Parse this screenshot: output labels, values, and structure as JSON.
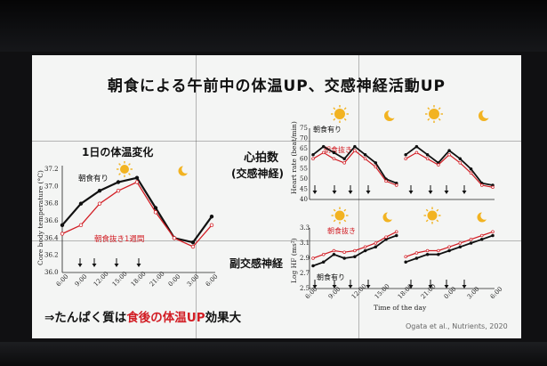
{
  "slide": {
    "title": "朝食による午前中の体温UP、交感神経活動UP",
    "left_panel": {
      "title": "1日の体温変化",
      "series_breakfast": "朝食有り",
      "series_skip": "朝食抜き1週間",
      "ylabel": "Core body temperature (°C)"
    },
    "right_top": {
      "label": "心拍数",
      "sublabel": "(交感神経)",
      "series_breakfast": "朝食有り",
      "series_skip": "朝食抜き",
      "ylabel": "Heart rate (beat/min)"
    },
    "right_bottom": {
      "label": "副交感神経",
      "series_breakfast": "朝食有り",
      "series_skip": "朝食抜き",
      "ylabel": "Log HF (ms²)",
      "xlabel": "Time of the day"
    },
    "conclusion_prefix": "⇒たんぱく質は",
    "conclusion_highlight": "食後の体温UP",
    "conclusion_suffix": "効果大",
    "citation": "Ogata et al., Nutrients, 2020",
    "colors": {
      "breakfast": "#111111",
      "skip": "#d21e25",
      "sun": "#f2b321",
      "moon": "#f2b321"
    },
    "icons": [
      "sun-icon",
      "moon-icon",
      "down-arrow-icon"
    ]
  },
  "chart_data": [
    {
      "type": "line",
      "ylabel": "Core body temperature (°C)",
      "x": [
        "6:00",
        "9:00",
        "12:00",
        "15:00",
        "18:00",
        "21:00",
        "0:00",
        "3:00",
        "6:00"
      ],
      "x_ticks": [
        "6:00",
        "9:00",
        "12:00",
        "15:00",
        "18:00",
        "21:00",
        "0:00",
        "3:00",
        "6:00"
      ],
      "y_ticks": [
        36.0,
        36.2,
        36.4,
        36.6,
        36.8,
        37.0,
        37.2
      ],
      "ylim": [
        36.0,
        37.2
      ],
      "series": [
        {
          "name": "朝食有り",
          "values": [
            36.55,
            36.8,
            36.95,
            37.05,
            37.1,
            36.75,
            36.4,
            36.35,
            36.65
          ]
        },
        {
          "name": "朝食抜き1週間",
          "values": [
            36.45,
            36.55,
            36.8,
            36.95,
            37.05,
            36.7,
            36.4,
            36.3,
            36.55
          ]
        }
      ]
    },
    {
      "type": "line",
      "ylabel": "Heart rate (beat/min)",
      "y_ticks": [
        40,
        45,
        50,
        55,
        60,
        65,
        70,
        75
      ],
      "ylim": [
        40,
        75
      ],
      "series": [
        {
          "name": "朝食有り",
          "values": [
            62,
            66,
            63,
            60,
            66,
            62,
            58,
            50,
            48,
            62,
            66,
            62,
            58,
            64,
            60,
            55,
            48,
            47
          ]
        },
        {
          "name": "朝食抜き",
          "values": [
            60,
            63,
            60,
            58,
            64,
            60,
            56,
            49,
            47,
            60,
            63,
            60,
            57,
            62,
            58,
            53,
            47,
            46
          ]
        }
      ]
    },
    {
      "type": "line",
      "ylabel": "Log HF (ms²)",
      "xlabel": "Time of the day",
      "x_ticks": [
        "6:00",
        "9:00",
        "12:00",
        "15:00",
        "18:00",
        "21:00",
        "0:00",
        "3:00",
        "6:00"
      ],
      "y_ticks": [
        2.5,
        2.7,
        2.9,
        3.1,
        3.3
      ],
      "ylim": [
        2.5,
        3.3
      ],
      "series": [
        {
          "name": "朝食有り",
          "values": [
            2.8,
            2.85,
            2.95,
            2.9,
            2.92,
            3.0,
            3.05,
            3.15,
            3.2,
            2.85,
            2.9,
            2.95,
            2.95,
            3.0,
            3.05,
            3.1,
            3.15,
            3.2
          ]
        },
        {
          "name": "朝食抜き",
          "values": [
            2.9,
            2.95,
            3.0,
            2.98,
            3.0,
            3.05,
            3.1,
            3.18,
            3.25,
            2.92,
            2.97,
            3.0,
            3.0,
            3.05,
            3.1,
            3.15,
            3.2,
            3.25
          ]
        }
      ]
    }
  ]
}
